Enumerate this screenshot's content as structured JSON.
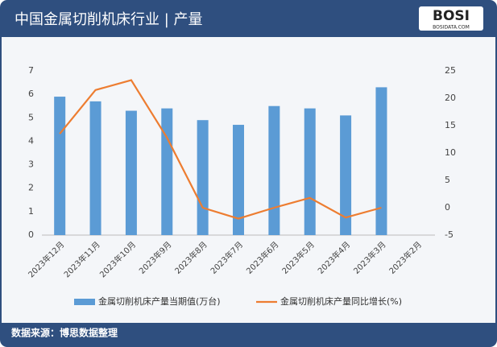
{
  "header": {
    "title": "中国金属切削机床行业 | 产量",
    "logo": "BOSI",
    "logo_sub": "BOSIDATA.COM"
  },
  "footer": {
    "source": "数据来源：博思数据整理"
  },
  "chart_data": {
    "type": "bar-line",
    "categories": [
      "2023年12月",
      "2023年11月",
      "2023年10月",
      "2023年9月",
      "2023年8月",
      "2023年7月",
      "2023年6月",
      "2023年5月",
      "2023年4月",
      "2023年3月",
      "2023年2月"
    ],
    "series": [
      {
        "name": "金属切削机床产量当期值(万台)",
        "color": "#5b9bd5",
        "type": "bar",
        "values": [
          5.9,
          5.7,
          5.3,
          5.4,
          4.9,
          4.7,
          5.5,
          5.4,
          5.1,
          6.3,
          null
        ]
      },
      {
        "name": "金属切削机床产量同比增长(%)",
        "color": "#ed7d31",
        "type": "line",
        "axis": "y2",
        "values": [
          13.5,
          21.5,
          23.3,
          12.8,
          0,
          -2,
          0,
          1.8,
          -1.8,
          0,
          null
        ]
      }
    ],
    "ylim": [
      0,
      7
    ],
    "yticks": [
      0,
      1,
      2,
      3,
      4,
      5,
      6,
      7
    ],
    "y2lim": [
      -5,
      25
    ],
    "y2ticks": [
      -5,
      0,
      5,
      10,
      15,
      20,
      25
    ]
  }
}
